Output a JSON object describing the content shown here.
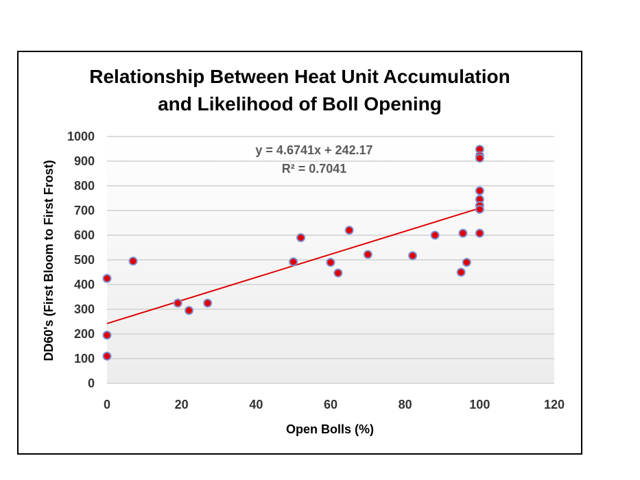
{
  "chart_data": {
    "type": "scatter",
    "title_line1": "Relationship  Between  Heat Unit Accumulation",
    "title_line2": "and Likelihood  of  Boll Opening",
    "xlabel": "Open Bolls (%)",
    "ylabel": "DD60's  (First Bloom to First Frost)",
    "xlim": [
      0,
      120
    ],
    "ylim": [
      0,
      1000
    ],
    "xticks": [
      0,
      20,
      40,
      60,
      80,
      100,
      120
    ],
    "yticks": [
      0,
      100,
      200,
      300,
      400,
      500,
      600,
      700,
      800,
      900,
      1000
    ],
    "grid": "horizontal",
    "legend": "none",
    "trendline": {
      "slope": 4.6741,
      "intercept": 242.17,
      "x_range": [
        0,
        100
      ],
      "equation_text": "y = 4.6741x + 242.17",
      "r2_text": "R² = 0.7041"
    },
    "points": [
      {
        "x": 0,
        "y": 425
      },
      {
        "x": 0,
        "y": 195
      },
      {
        "x": 0,
        "y": 110
      },
      {
        "x": 7,
        "y": 495
      },
      {
        "x": 19,
        "y": 325
      },
      {
        "x": 22,
        "y": 295
      },
      {
        "x": 27,
        "y": 325
      },
      {
        "x": 50,
        "y": 492
      },
      {
        "x": 52,
        "y": 590
      },
      {
        "x": 60,
        "y": 490
      },
      {
        "x": 62,
        "y": 447
      },
      {
        "x": 65,
        "y": 620
      },
      {
        "x": 70,
        "y": 522
      },
      {
        "x": 82,
        "y": 517
      },
      {
        "x": 88,
        "y": 600
      },
      {
        "x": 95,
        "y": 450
      },
      {
        "x": 95.5,
        "y": 608
      },
      {
        "x": 96.5,
        "y": 490
      },
      {
        "x": 100,
        "y": 948
      },
      {
        "x": 100,
        "y": 922
      },
      {
        "x": 100,
        "y": 912
      },
      {
        "x": 100,
        "y": 780
      },
      {
        "x": 100,
        "y": 745
      },
      {
        "x": 100,
        "y": 720
      },
      {
        "x": 100,
        "y": 705
      },
      {
        "x": 100,
        "y": 608
      }
    ],
    "colors": {
      "marker_fill": "#e00000",
      "marker_stroke": "#7f8fd0",
      "trendline": "#e00000",
      "gridline": "#d0d0d0"
    }
  }
}
